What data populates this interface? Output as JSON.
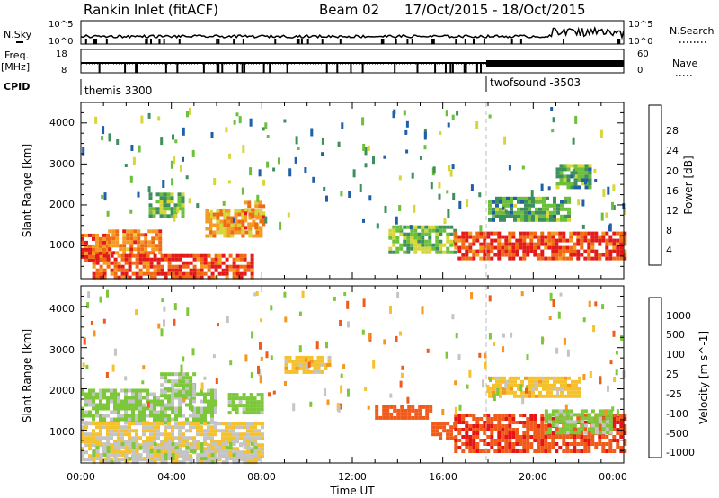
{
  "header": {
    "radar_title": "Rankin Inlet (fitACF)",
    "beam": "Beam 02",
    "date_range": "17/Oct/2015 - 18/Oct/2015"
  },
  "noise_panel": {
    "left_label": "N.Sky",
    "right_label": "N.Search",
    "ticks_left": [
      "10^5",
      "10^0"
    ],
    "ticks_right": [
      "10^5",
      "10^0"
    ]
  },
  "freq_panel": {
    "left_label_line1": "Freq.",
    "left_label_line2": "[MHz]",
    "ticks_left": [
      "18",
      "8"
    ],
    "right_label": "Nave",
    "ticks_right": [
      "60",
      "0"
    ]
  },
  "cpid": {
    "label": "CPID",
    "program_1": "themis 3300",
    "program_2": "twofsound -3503"
  },
  "time_axis": {
    "label": "Time UT",
    "ticks": [
      "00:00",
      "04:00",
      "08:00",
      "12:00",
      "16:00",
      "20:00",
      "00:00"
    ]
  },
  "colors": {
    "power_scale": [
      "#0014ff",
      "#1f5fa6",
      "#3f8f5e",
      "#6cbf3a",
      "#d6d63a",
      "#f59a22",
      "#f06a14",
      "#e31a1a"
    ],
    "velocity_scale": [
      "#e61414",
      "#f05a1a",
      "#f5961f",
      "#f5c22e",
      "#c4c4c4",
      "#7dc83a",
      "#3f8f5e",
      "#2d5fb0"
    ]
  },
  "chart_data": [
    {
      "type": "heatmap",
      "name": "power",
      "ylabel": "Slant Range [km]",
      "xlabel": "",
      "yticks": [
        "1000",
        "2000",
        "3000",
        "4000"
      ],
      "ylim": [
        200,
        4500
      ],
      "xlim_hours": [
        0,
        24
      ],
      "colorbar_label": "Power [dB]",
      "colorbar_ticks": [
        "4",
        "8",
        "12",
        "16",
        "20",
        "24",
        "28"
      ],
      "colorbar_range": [
        0,
        32
      ],
      "echo_regions": [
        {
          "t0": 0.0,
          "t1": 1.2,
          "r0": 600,
          "r1": 1300,
          "dB": 26
        },
        {
          "t0": 1.2,
          "t1": 3.5,
          "r0": 800,
          "r1": 1400,
          "dB": 24
        },
        {
          "t0": 0.5,
          "t1": 7.5,
          "r0": 250,
          "r1": 800,
          "dB": 28
        },
        {
          "t0": 3.0,
          "t1": 4.5,
          "r0": 1700,
          "r1": 2300,
          "dB": 14
        },
        {
          "t0": 5.5,
          "t1": 8.0,
          "r0": 1200,
          "r1": 1900,
          "dB": 22
        },
        {
          "t0": 7.2,
          "t1": 8.0,
          "r0": 1400,
          "r1": 2100,
          "dB": 24
        },
        {
          "t0": 13.6,
          "t1": 16.5,
          "r0": 800,
          "r1": 1500,
          "dB": 14
        },
        {
          "t0": 16.5,
          "t1": 24.0,
          "r0": 700,
          "r1": 1350,
          "dB": 28
        },
        {
          "t0": 18.0,
          "t1": 21.5,
          "r0": 1600,
          "r1": 2200,
          "dB": 12
        },
        {
          "t0": 21.0,
          "t1": 22.5,
          "r0": 2400,
          "r1": 3000,
          "dB": 12
        }
      ]
    },
    {
      "type": "heatmap",
      "name": "velocity",
      "ylabel": "Slant Range [km]",
      "xlabel": "Time UT",
      "yticks": [
        "1000",
        "2000",
        "3000",
        "4000"
      ],
      "ylim": [
        200,
        4500
      ],
      "xlim_hours": [
        0,
        24
      ],
      "colorbar_label": "Velocity [m s^-1]",
      "colorbar_ticks": [
        "1000",
        "500",
        "100",
        "25",
        "-25",
        "-100",
        "-500",
        "-1000"
      ],
      "colorbar_range": [
        -1000,
        1000
      ],
      "echo_regions": [
        {
          "t0": 0.0,
          "t1": 6.0,
          "r0": 1200,
          "r1": 2000,
          "v": 150
        },
        {
          "t0": 0.0,
          "t1": 8.0,
          "r0": 300,
          "r1": 1200,
          "v": 20
        },
        {
          "t0": 0.5,
          "t1": 7.8,
          "r0": 250,
          "r1": 700,
          "v": 60
        },
        {
          "t0": 3.5,
          "t1": 5.0,
          "r0": 1800,
          "r1": 2400,
          "v": 150
        },
        {
          "t0": 6.5,
          "t1": 8.0,
          "r0": 1400,
          "r1": 1900,
          "v": 200
        },
        {
          "t0": 13.0,
          "t1": 15.5,
          "r0": 1300,
          "r1": 1600,
          "v": -300
        },
        {
          "t0": 15.5,
          "t1": 16.5,
          "r0": 800,
          "r1": 1200,
          "v": -300
        },
        {
          "t0": 16.5,
          "t1": 24.0,
          "r0": 500,
          "r1": 1400,
          "v": -400
        },
        {
          "t0": 20.5,
          "t1": 23.5,
          "r0": 900,
          "r1": 1500,
          "v": 150
        },
        {
          "t0": 18.0,
          "t1": 22.0,
          "r0": 1800,
          "r1": 2300,
          "v": 0
        },
        {
          "t0": 9.0,
          "t1": 11.0,
          "r0": 2400,
          "r1": 2800,
          "v": 0
        }
      ]
    }
  ]
}
